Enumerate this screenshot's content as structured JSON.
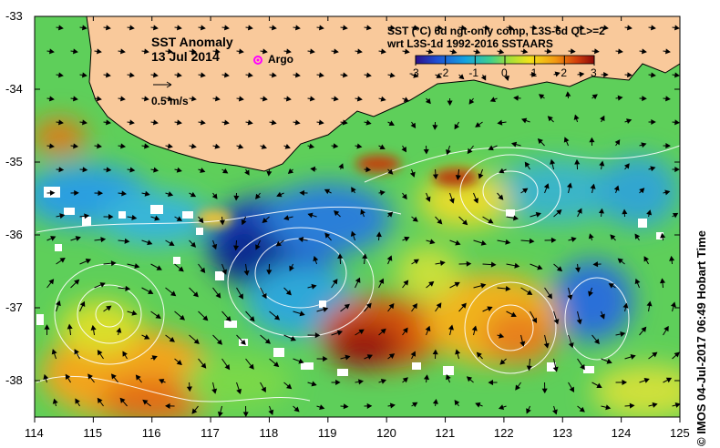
{
  "map": {
    "title": "SST Anomaly",
    "date": "13 Jul 2014",
    "argo_label": "Argo",
    "vector_scale_label": "0.5 m/s",
    "colorbar_title_line1": "SST (°C) 6d ngt-only comp, L3S-6d QL>=2",
    "colorbar_title_line2": "wrt L3S-1d 1992-2016 SSTAARS",
    "colorbar_ticks": [
      "-3",
      "-2",
      "-1",
      "0",
      "1",
      "2",
      "3"
    ],
    "colorbar_range": [
      -3,
      3
    ],
    "x_ticks": [
      "114",
      "115",
      "116",
      "117",
      "118",
      "119",
      "120",
      "121",
      "122",
      "123",
      "124",
      "125"
    ],
    "y_ticks": [
      "-33",
      "-34",
      "-35",
      "-36",
      "-37",
      "-38"
    ],
    "lon_range": [
      114,
      125
    ],
    "lat_range": [
      -38.5,
      -33
    ],
    "credit": "© IMOS 04-Jul-2017 06:49 Hobart Time",
    "colors": {
      "land": "#f9c99b",
      "colorbar": [
        "#2b0f8a",
        "#1f4fd4",
        "#14a3e0",
        "#3fcf8c",
        "#9fe03a",
        "#f2e21a",
        "#f29a12",
        "#d4400c",
        "#8a0a0a"
      ],
      "argo_marker": "#ff00ff"
    }
  }
}
